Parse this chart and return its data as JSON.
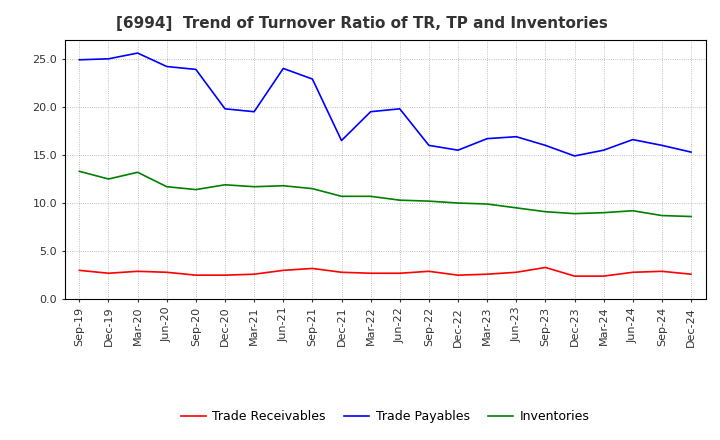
{
  "title": "[6994]  Trend of Turnover Ratio of TR, TP and Inventories",
  "x_labels": [
    "Sep-19",
    "Dec-19",
    "Mar-20",
    "Jun-20",
    "Sep-20",
    "Dec-20",
    "Mar-21",
    "Jun-21",
    "Sep-21",
    "Dec-21",
    "Mar-22",
    "Jun-22",
    "Sep-22",
    "Dec-22",
    "Mar-23",
    "Jun-23",
    "Sep-23",
    "Dec-23",
    "Mar-24",
    "Jun-24",
    "Sep-24",
    "Dec-24"
  ],
  "trade_receivables": [
    3.0,
    2.7,
    2.9,
    2.8,
    2.5,
    2.5,
    2.6,
    3.0,
    3.2,
    2.8,
    2.7,
    2.7,
    2.9,
    2.5,
    2.6,
    2.8,
    3.3,
    2.4,
    2.4,
    2.8,
    2.9,
    2.6
  ],
  "trade_payables": [
    24.9,
    25.0,
    25.6,
    24.2,
    23.9,
    19.8,
    19.5,
    24.0,
    22.9,
    16.5,
    19.5,
    19.8,
    16.0,
    15.5,
    16.7,
    16.9,
    16.0,
    14.9,
    15.5,
    16.6,
    16.0,
    15.3
  ],
  "inventories": [
    13.3,
    12.5,
    13.2,
    11.7,
    11.4,
    11.9,
    11.7,
    11.8,
    11.5,
    10.7,
    10.7,
    10.3,
    10.2,
    10.0,
    9.9,
    9.5,
    9.1,
    8.9,
    9.0,
    9.2,
    8.7,
    8.6
  ],
  "tr_color": "#FF0000",
  "tp_color": "#0000FF",
  "inv_color": "#008000",
  "ylim": [
    0,
    27
  ],
  "yticks": [
    0.0,
    5.0,
    10.0,
    15.0,
    20.0,
    25.0
  ],
  "background_color": "#FFFFFF",
  "grid_color": "#999999",
  "title_color": "#333333",
  "title_fontsize": 11,
  "tick_fontsize": 8,
  "legend_fontsize": 9
}
